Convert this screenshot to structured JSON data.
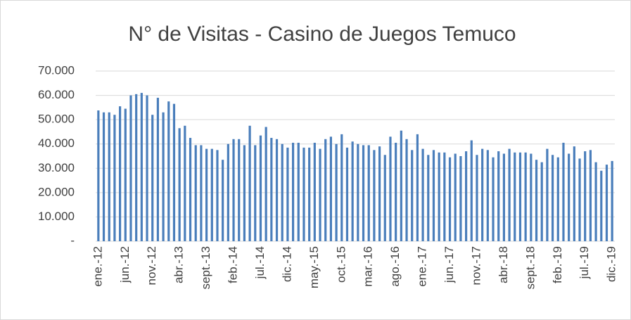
{
  "chart_data": {
    "type": "bar",
    "title": "N° de Visitas - Casino de Juegos Temuco",
    "categories": [
      "ene.-12",
      null,
      null,
      null,
      null,
      "jun.-12",
      null,
      null,
      null,
      null,
      "nov.-12",
      null,
      null,
      null,
      null,
      "abr.-13",
      null,
      null,
      null,
      null,
      "sept.-13",
      null,
      null,
      null,
      null,
      "feb.-14",
      null,
      null,
      null,
      null,
      "jul.-14",
      null,
      null,
      null,
      null,
      "dic.-14",
      null,
      null,
      null,
      null,
      "may.-15",
      null,
      null,
      null,
      null,
      "oct.-15",
      null,
      null,
      null,
      null,
      "mar.-16",
      null,
      null,
      null,
      null,
      "ago.-16",
      null,
      null,
      null,
      null,
      "ene.-17",
      null,
      null,
      null,
      null,
      "jun.-17",
      null,
      null,
      null,
      null,
      "nov.-17",
      null,
      null,
      null,
      null,
      "abr.-18",
      null,
      null,
      null,
      null,
      "sept.-18",
      null,
      null,
      null,
      null,
      "feb.-19",
      null,
      null,
      null,
      null,
      "jul.-19",
      null,
      null,
      null,
      null,
      "dic.-19"
    ],
    "values": [
      53800,
      53000,
      53000,
      52000,
      55500,
      54500,
      60000,
      60500,
      61000,
      60000,
      52000,
      59000,
      53000,
      57500,
      56500,
      46500,
      47500,
      42500,
      39500,
      39500,
      38000,
      38000,
      37500,
      33500,
      40000,
      42000,
      42000,
      39500,
      47500,
      39500,
      43500,
      47000,
      42500,
      42000,
      40000,
      38500,
      40500,
      40500,
      38500,
      38500,
      40500,
      38000,
      42000,
      43000,
      40000,
      44000,
      38500,
      41000,
      40000,
      39500,
      39500,
      37500,
      39000,
      35500,
      43000,
      40500,
      45500,
      42000,
      37500,
      44000,
      38000,
      35500,
      37500,
      36500,
      36500,
      34500,
      36000,
      35000,
      37000,
      41500,
      35500,
      38000,
      37500,
      34500,
      37000,
      36000,
      38000,
      36500,
      36500,
      36500,
      36000,
      33500,
      32500,
      38000,
      35500,
      34500,
      40500,
      36000,
      39000,
      34000,
      37000,
      37500,
      32500,
      29000,
      31500,
      33000
    ],
    "color": "#4a7ebb",
    "ylim": [
      0,
      70000
    ],
    "yticks": [
      {
        "value": 0,
        "label": "-"
      },
      {
        "value": 10000,
        "label": "10.000"
      },
      {
        "value": 20000,
        "label": "20.000"
      },
      {
        "value": 30000,
        "label": "30.000"
      },
      {
        "value": 40000,
        "label": "40.000"
      },
      {
        "value": 50000,
        "label": "50.000"
      },
      {
        "value": 60000,
        "label": "60.000"
      },
      {
        "value": 70000,
        "label": "70.000"
      }
    ],
    "grid": true
  }
}
